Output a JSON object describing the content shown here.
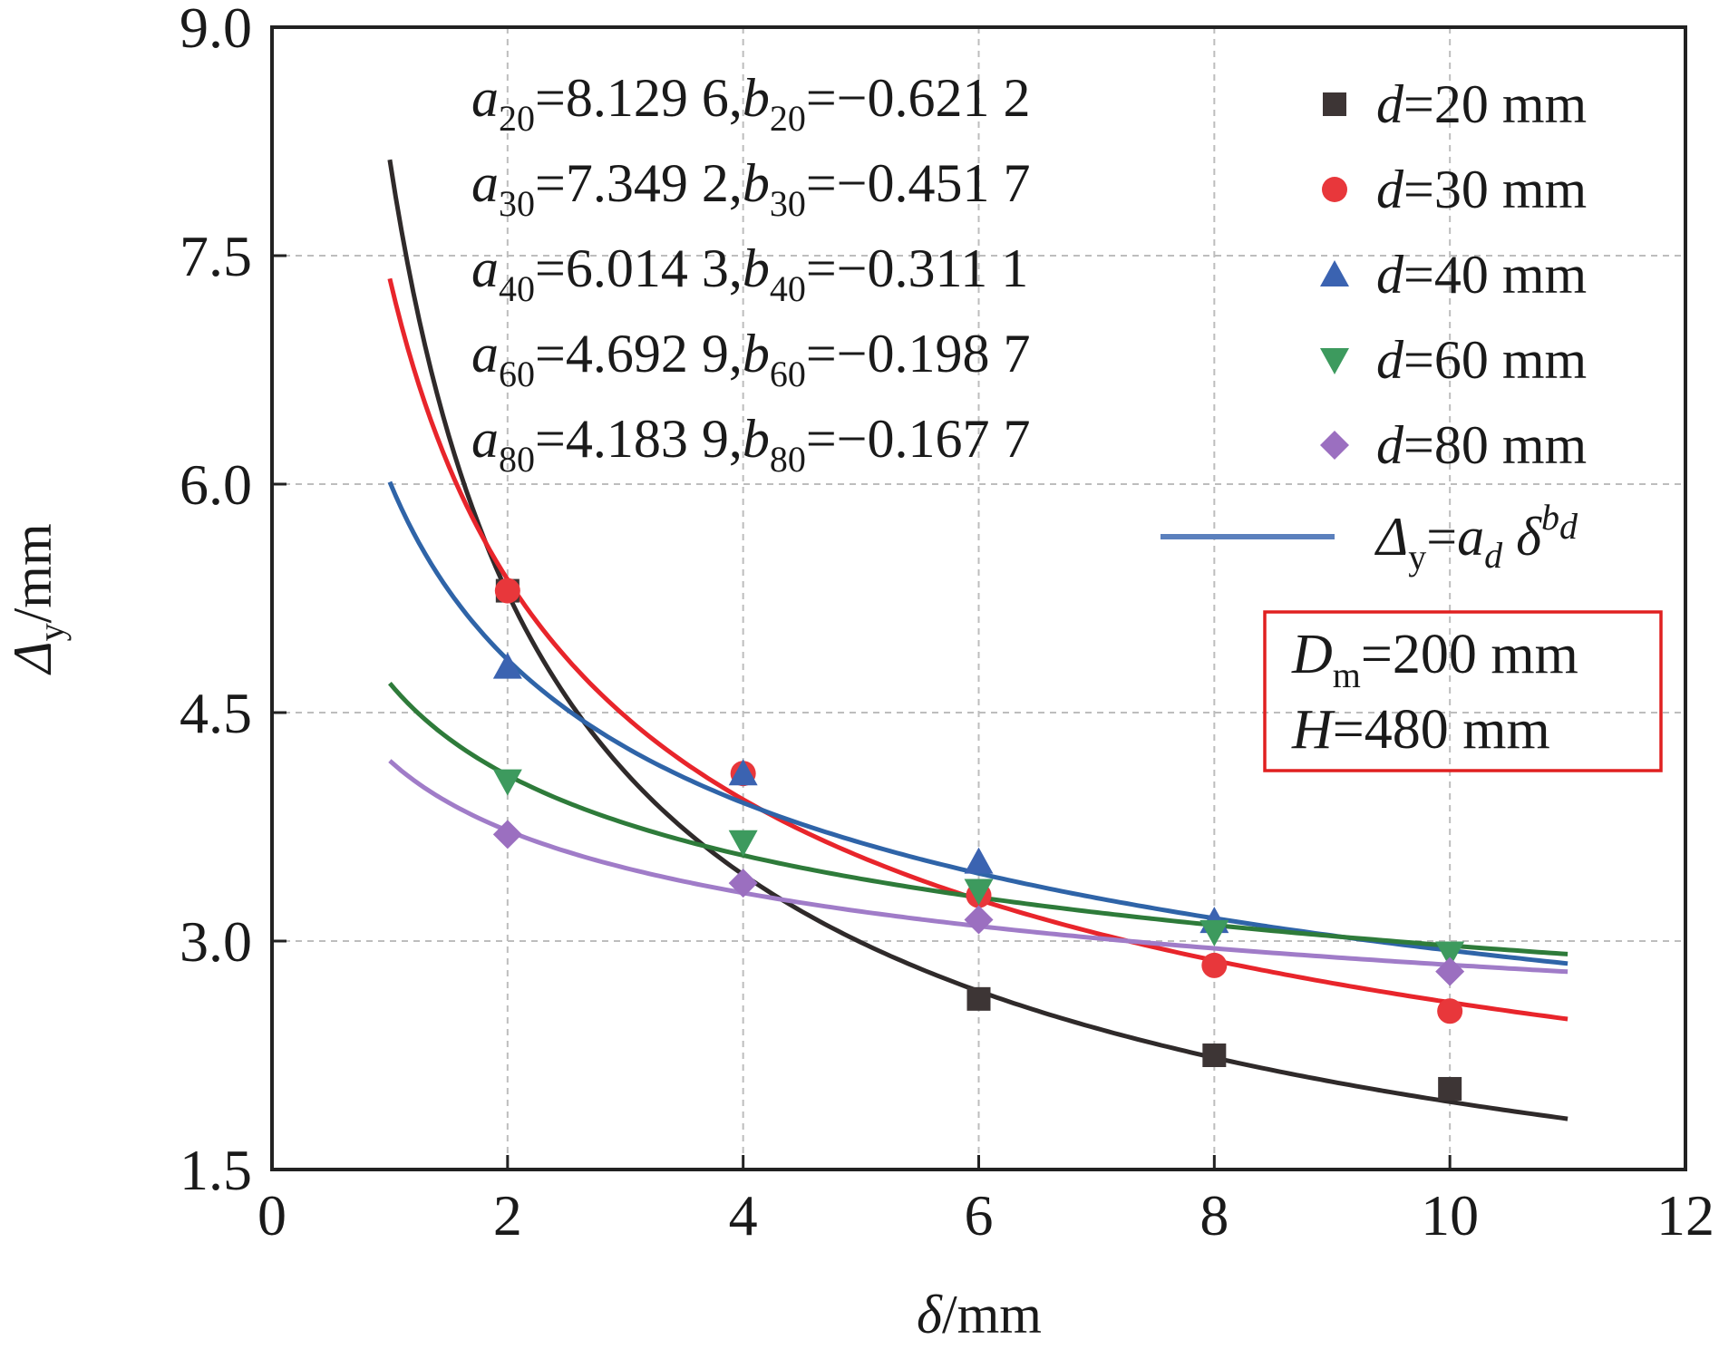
{
  "chart_data": {
    "type": "scatter",
    "xlabel": {
      "symbol": "δ",
      "unit": "/mm"
    },
    "ylabel": {
      "symbol": "Δ",
      "sub": "y",
      "unit": "/mm"
    },
    "xlim": [
      0,
      12
    ],
    "ylim": [
      1.5,
      9.0
    ],
    "xticks": [
      "0",
      "2",
      "4",
      "6",
      "8",
      "10",
      "12"
    ],
    "yticks": [
      "1.5",
      "3.0",
      "4.5",
      "6.0",
      "7.5",
      "9.0"
    ],
    "grid": true,
    "fit_range": [
      1,
      11
    ],
    "series": [
      {
        "name": "d=20 mm",
        "d": "20",
        "marker": "square",
        "color": "#3d3535",
        "a": 8.1296,
        "b": -0.6212,
        "x": [
          2,
          6,
          8,
          10
        ],
        "y": [
          5.3,
          2.62,
          2.25,
          2.03
        ]
      },
      {
        "name": "d=30 mm",
        "d": "30",
        "marker": "circle",
        "color": "#e8373b",
        "a": 7.3492,
        "b": -0.4517,
        "x": [
          2,
          4,
          6,
          8,
          10
        ],
        "y": [
          5.3,
          4.1,
          3.3,
          2.84,
          2.54
        ]
      },
      {
        "name": "d=40 mm",
        "d": "40",
        "marker": "triangle-up",
        "color": "#3b63b1",
        "a": 6.0143,
        "b": -0.3111,
        "x": [
          2,
          4,
          6,
          8
        ],
        "y": [
          4.8,
          4.1,
          3.52,
          3.13
        ]
      },
      {
        "name": "d=60 mm",
        "d": "60",
        "marker": "triangle-down",
        "color": "#3d9a5e",
        "a": 4.6929,
        "b": -0.1987,
        "x": [
          2,
          4,
          6,
          8,
          10
        ],
        "y": [
          4.05,
          3.65,
          3.33,
          3.06,
          2.92
        ]
      },
      {
        "name": "d=80 mm",
        "d": "80",
        "marker": "diamond",
        "color": "#9b6fc0",
        "a": 4.1839,
        "b": -0.1677,
        "x": [
          2,
          4,
          6,
          10
        ],
        "y": [
          3.7,
          3.38,
          3.14,
          2.8
        ]
      }
    ],
    "curve_colors": [
      "#2f2a2a",
      "#e8252b",
      "#2f64a8",
      "#2e7b3a",
      "#a07cc8"
    ],
    "annotations": [
      {
        "a_sym": "a",
        "a_sub": "20",
        "a_val": "=8.129 6,",
        "b_sym": "b",
        "b_sub": "20",
        "b_val": "=−0.621 2"
      },
      {
        "a_sym": "a",
        "a_sub": "30",
        "a_val": "=7.349 2,",
        "b_sym": "b",
        "b_sub": "30",
        "b_val": "=−0.451 7"
      },
      {
        "a_sym": "a",
        "a_sub": "40",
        "a_val": "=6.014 3,",
        "b_sym": "b",
        "b_sub": "40",
        "b_val": "=−0.311 1"
      },
      {
        "a_sym": "a",
        "a_sub": "60",
        "a_val": "=4.692 9,",
        "b_sym": "b",
        "b_sub": "60",
        "b_val": "=−0.198 7"
      },
      {
        "a_sym": "a",
        "a_sub": "80",
        "a_val": "=4.183 9,",
        "b_sym": "b",
        "b_sub": "80",
        "b_val": "=−0.167 7"
      }
    ],
    "legend": {
      "placement": "top-right",
      "d_symbol": "d",
      "fit_line_color": "#5b80bd",
      "fit_label": {
        "lhs": "Δ",
        "lhs_sub": "y",
        "eq": "=",
        "a": "a",
        "a_sub": "d",
        "base": "δ",
        "exp": "b",
        "exp_sub": "d"
      }
    },
    "param_box": {
      "border_color": "#e02020",
      "line1": {
        "sym": "D",
        "sub": "m",
        "val": "=200 mm"
      },
      "line2": {
        "sym": "H",
        "val": "=480 mm"
      }
    }
  }
}
